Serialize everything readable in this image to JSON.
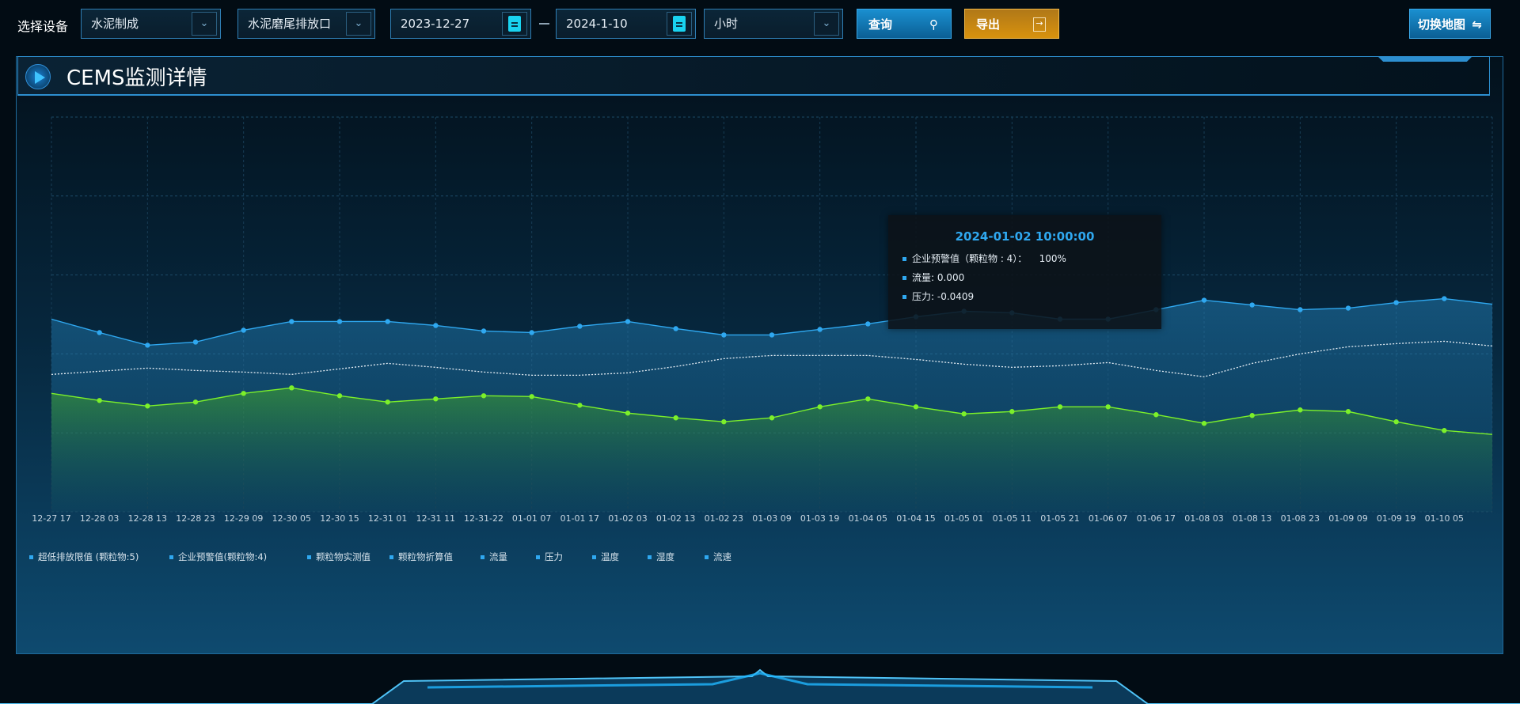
{
  "toolbar": {
    "device_label": "选择设备",
    "device_select": "水泥制成",
    "outlet_select": "水泥磨尾排放口",
    "start_date": "2023-12-27",
    "end_date": "2024-1-10",
    "interval_select": "小时",
    "query_label": "查询",
    "export_label": "导出",
    "switch_map_label": "切换地图"
  },
  "panel": {
    "title": "CEMS监测详情"
  },
  "tooltip": {
    "time": "2024-01-02 10:00:00",
    "rows": [
      "企业预警值（颗粒物 : 4）：    100%",
      "流量: 0.000",
      "压力: -0.0409"
    ]
  },
  "colors": {
    "blue_line": "#2fa8f0",
    "green_line": "#7cf02a",
    "dotted_line": "#e6eef5",
    "accent": "#2fa8f0",
    "export": "#d08a12"
  },
  "chart_data": {
    "type": "line",
    "categories": [
      "12-27 17",
      "12-28 03",
      "12-28 13",
      "12-28 23",
      "12-29 09",
      "12-30 05",
      "12-30 15",
      "12-31 01",
      "12-31 11",
      "12-31-22",
      "01-01 07",
      "01-01 17",
      "01-02 03",
      "01-02 13",
      "01-02 23",
      "01-03 09",
      "01-03 19",
      "01-04 05",
      "01-04 15",
      "01-05 01",
      "01-05 11",
      "01-05 21",
      "01-06 07",
      "01-06 17",
      "01-08 03",
      "01-08 13",
      "01-08 23",
      "01-09 09",
      "01-09 19",
      "01-10 05",
      ""
    ],
    "ylim": [
      0,
      5
    ],
    "grid": true,
    "legend_position": "bottom-left",
    "legend": [
      "超低排放限值 (颗粒物:5)",
      "企业预警值(颗粒物:4)",
      "颗粒物实测值",
      "颗粒物折算值",
      "流量",
      "压力",
      "温度",
      "湿度",
      "流速"
    ],
    "series": [
      {
        "style": "area-blue",
        "values": [
          2.44,
          2.27,
          2.11,
          2.15,
          2.3,
          2.41,
          2.41,
          2.41,
          2.36,
          2.29,
          2.27,
          2.35,
          2.41,
          2.32,
          2.24,
          2.24,
          2.31,
          2.38,
          2.47,
          2.54,
          2.52,
          2.44,
          2.44,
          2.56,
          2.68,
          2.62,
          2.56,
          2.58,
          2.65,
          2.7,
          2.63
        ]
      },
      {
        "style": "dotted",
        "values": [
          1.74,
          1.78,
          1.82,
          1.79,
          1.77,
          1.74,
          1.81,
          1.88,
          1.83,
          1.77,
          1.73,
          1.73,
          1.76,
          1.84,
          1.94,
          1.98,
          1.98,
          1.98,
          1.93,
          1.87,
          1.83,
          1.85,
          1.89,
          1.79,
          1.71,
          1.88,
          2.0,
          2.09,
          2.13,
          2.16,
          2.1
        ]
      },
      {
        "style": "area-green",
        "values": [
          1.5,
          1.41,
          1.34,
          1.39,
          1.5,
          1.57,
          1.47,
          1.39,
          1.43,
          1.47,
          1.46,
          1.35,
          1.25,
          1.19,
          1.14,
          1.19,
          1.33,
          1.43,
          1.33,
          1.24,
          1.27,
          1.33,
          1.33,
          1.23,
          1.12,
          1.22,
          1.29,
          1.27,
          1.14,
          1.03,
          0.98
        ]
      }
    ]
  }
}
